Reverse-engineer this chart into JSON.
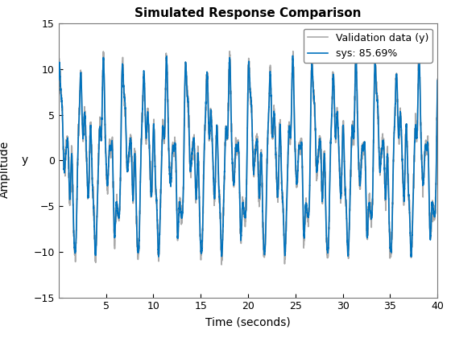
{
  "title": "Simulated Response Comparison",
  "xlabel": "Time (seconds)",
  "ylabel_outer": "Amplitude",
  "ylabel_inner": "y",
  "xlim": [
    0,
    40
  ],
  "ylim": [
    -15,
    15
  ],
  "xticks": [
    5,
    10,
    15,
    20,
    25,
    30,
    35,
    40
  ],
  "yticks": [
    -15,
    -10,
    -5,
    0,
    5,
    10,
    15
  ],
  "legend_labels": [
    "Validation data (y)",
    "sys: 85.69%"
  ],
  "validation_color": "#aaaaaa",
  "sys_color": "#0072bd",
  "validation_linewidth": 1.2,
  "sys_linewidth": 1.2,
  "title_fontsize": 11,
  "label_fontsize": 10,
  "tick_fontsize": 9,
  "legend_fontsize": 9,
  "figure_facecolor": "#ffffff",
  "axes_facecolor": "#ffffff"
}
